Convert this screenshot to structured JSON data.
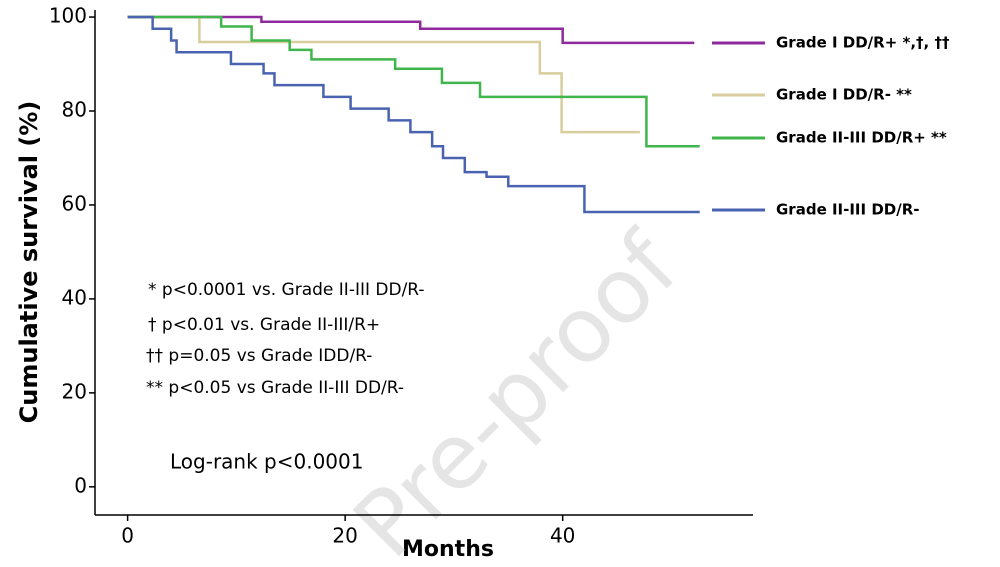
{
  "chart_data": {
    "type": "line",
    "step": true,
    "xlabel": "Months",
    "ylabel": "Cumulative survival (%)",
    "xlim": [
      -3,
      57.5
    ],
    "ylim": [
      -6,
      101.5
    ],
    "xticks": [
      0,
      20,
      40
    ],
    "yticks": [
      0,
      20,
      40,
      60,
      80,
      100
    ],
    "series": [
      {
        "name": "Grade I DD/R+ *,†, ††",
        "color": "#8e2a9c",
        "x": [
          0,
          12.3,
          26.9,
          40,
          52.1
        ],
        "values": [
          100,
          99,
          97.5,
          94.5,
          94.5
        ]
      },
      {
        "name": "Grade I DD/R- **",
        "color": "#d8cd9c",
        "x": [
          0,
          6.6,
          37.9,
          39.9,
          47.1
        ],
        "values": [
          100,
          94.7,
          88,
          75.5,
          75.5
        ]
      },
      {
        "name": "Grade II-III DD/R+ **",
        "color": "#3fb54b",
        "x": [
          0,
          8.6,
          11.4,
          14.9,
          16.9,
          24.6,
          28.9,
          32.4,
          47.7,
          52.6
        ],
        "values": [
          100,
          98,
          95,
          93,
          91,
          89,
          86,
          83,
          72.5,
          72.5
        ]
      },
      {
        "name": "Grade II-III DD/R-",
        "color": "#4a63b0",
        "x": [
          0,
          2.3,
          4,
          4.5,
          9.5,
          12.5,
          13.5,
          18,
          20.5,
          24,
          26,
          28,
          29,
          31,
          33,
          35,
          42,
          52.6
        ],
        "values": [
          100,
          97.5,
          95,
          92.5,
          90,
          88,
          85.5,
          83,
          80.5,
          78,
          75.5,
          72.5,
          70,
          67,
          66,
          64,
          58.5,
          58.5
        ]
      }
    ],
    "annotations": [
      "*    p<0.0001 vs. Grade II-III DD/R-",
      "†    p<0.01 vs. Grade II-III/R+",
      "†† p=0.05 vs Grade IDD/R-",
      "** p<0.05 vs Grade II-III DD/R-",
      "Log-rank p<0.0001"
    ],
    "watermark": "Pre-proof"
  }
}
